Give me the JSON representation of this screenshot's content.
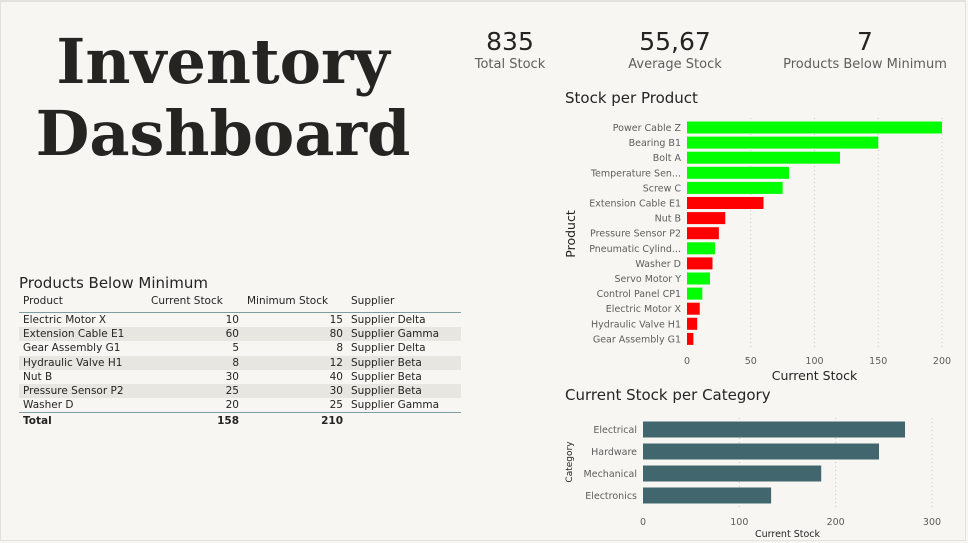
{
  "page": {
    "title": "Inventory Dashboard"
  },
  "kpis": [
    {
      "value": "835",
      "label": "Total Stock"
    },
    {
      "value": "55,67",
      "label": "Average Stock"
    },
    {
      "value": "7",
      "label": "Products Below Minimum"
    }
  ],
  "below_min_table": {
    "title": "Products Below Minimum",
    "headers": [
      "Product",
      "Current Stock",
      "Minimum Stock",
      "Supplier"
    ],
    "rows": [
      [
        "Electric Motor X",
        "10",
        "15",
        "Supplier Delta"
      ],
      [
        "Extension Cable E1",
        "60",
        "80",
        "Supplier Gamma"
      ],
      [
        "Gear Assembly G1",
        "5",
        "8",
        "Supplier Delta"
      ],
      [
        "Hydraulic Valve H1",
        "8",
        "12",
        "Supplier Beta"
      ],
      [
        "Nut B",
        "30",
        "40",
        "Supplier Beta"
      ],
      [
        "Pressure Sensor P2",
        "25",
        "30",
        "Supplier Beta"
      ],
      [
        "Washer D",
        "20",
        "25",
        "Supplier Gamma"
      ]
    ],
    "total": [
      "Total",
      "158",
      "210",
      ""
    ]
  },
  "colors": {
    "ok": "#00ff00",
    "below": "#ff0000",
    "category_bar": "#41666e"
  },
  "chart_data": [
    {
      "type": "bar",
      "orientation": "horizontal",
      "title": "Stock per Product",
      "xlabel": "Current Stock",
      "ylabel": "Product",
      "xlim": [
        0,
        200
      ],
      "xticks": [
        0,
        50,
        100,
        150,
        200
      ],
      "categories": [
        "Power Cable Z",
        "Bearing B1",
        "Bolt A",
        "Temperature Sen...",
        "Screw C",
        "Extension Cable E1",
        "Nut B",
        "Pressure Sensor P2",
        "Pneumatic Cylind...",
        "Washer D",
        "Servo Motor Y",
        "Control Panel CP1",
        "Electric Motor X",
        "Hydraulic Valve H1",
        "Gear Assembly G1"
      ],
      "values": [
        200,
        150,
        120,
        80,
        75,
        60,
        30,
        25,
        22,
        20,
        18,
        12,
        10,
        8,
        5
      ],
      "below_minimum": [
        false,
        false,
        false,
        false,
        false,
        true,
        true,
        true,
        false,
        true,
        false,
        false,
        true,
        true,
        true
      ]
    },
    {
      "type": "bar",
      "orientation": "horizontal",
      "title": "Current Stock per Category",
      "xlabel": "Current Stock",
      "ylabel": "Category",
      "xlim": [
        0,
        300
      ],
      "xticks": [
        0,
        100,
        200,
        300
      ],
      "categories": [
        "Electrical",
        "Hardware",
        "Mechanical",
        "Electronics"
      ],
      "values": [
        272,
        245,
        185,
        133
      ]
    }
  ]
}
